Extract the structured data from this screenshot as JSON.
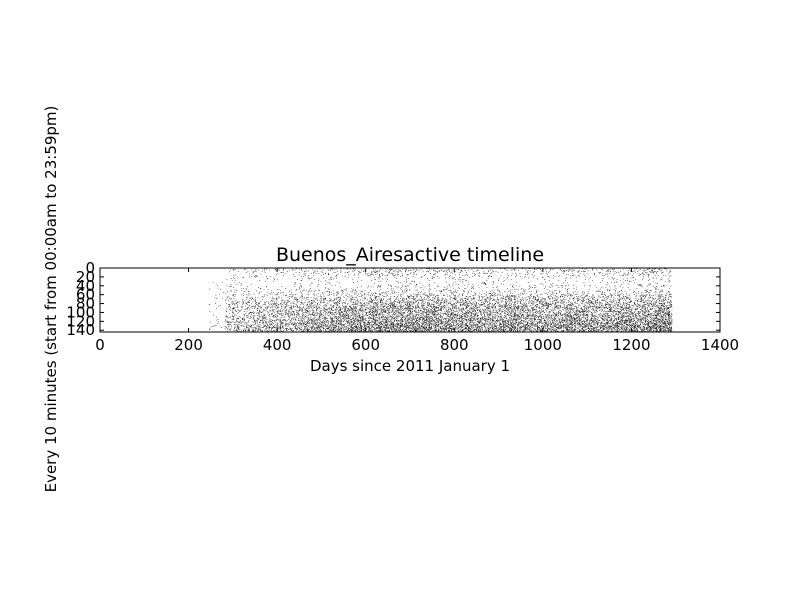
{
  "chart_data": {
    "type": "heatmap",
    "title": "Buenos_Airesactive timeline",
    "xlabel": "Days since 2011 January 1",
    "ylabel": "Every 10 minutes (start from 00:00am to 23:59pm)",
    "xlim": [
      0,
      1400
    ],
    "ylim": [
      0,
      144
    ],
    "y_inverted": true,
    "x_ticks": [
      0,
      200,
      400,
      600,
      800,
      1000,
      1200,
      1400
    ],
    "y_ticks": [
      0,
      20,
      40,
      60,
      80,
      100,
      120,
      140
    ],
    "grid": false,
    "colors": {
      "active": "#000000",
      "inactive": "#ffffff"
    },
    "active_day_range": [
      283,
      1290
    ],
    "sparse_prefix_days": [
      245,
      283
    ],
    "slot_activity_profile": [
      {
        "slot": 0,
        "level": 0.14
      },
      {
        "slot": 10,
        "level": 0.11
      },
      {
        "slot": 20,
        "level": 0.06
      },
      {
        "slot": 30,
        "level": 0.04
      },
      {
        "slot": 40,
        "level": 0.05
      },
      {
        "slot": 50,
        "level": 0.08
      },
      {
        "slot": 60,
        "level": 0.15
      },
      {
        "slot": 70,
        "level": 0.24
      },
      {
        "slot": 80,
        "level": 0.3
      },
      {
        "slot": 90,
        "level": 0.34
      },
      {
        "slot": 100,
        "level": 0.36
      },
      {
        "slot": 110,
        "level": 0.4
      },
      {
        "slot": 120,
        "level": 0.45
      },
      {
        "slot": 130,
        "level": 0.52
      },
      {
        "slot": 144,
        "level": 0.56
      }
    ],
    "day_activity_profile": [
      {
        "day": 283,
        "level": 0.45
      },
      {
        "day": 400,
        "level": 0.65
      },
      {
        "day": 600,
        "level": 1.0
      },
      {
        "day": 700,
        "level": 1.1
      },
      {
        "day": 800,
        "level": 0.95
      },
      {
        "day": 900,
        "level": 0.95
      },
      {
        "day": 1000,
        "level": 0.95
      },
      {
        "day": 1100,
        "level": 0.9
      },
      {
        "day": 1200,
        "level": 1.0
      },
      {
        "day": 1290,
        "level": 1.15
      }
    ]
  }
}
